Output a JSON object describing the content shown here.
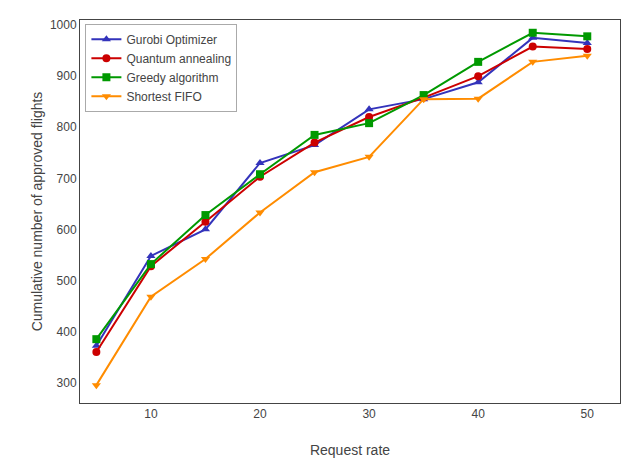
{
  "chart_data": {
    "type": "line",
    "x": [
      5,
      10,
      15,
      20,
      25,
      30,
      35,
      40,
      45,
      50
    ],
    "xlabel": "Request rate",
    "ylabel": "Cumulative number of approved flights",
    "xlim": [
      3.5,
      53
    ],
    "ylim": [
      260,
      1010
    ],
    "xticks": [
      10,
      20,
      30,
      40,
      50
    ],
    "yticks": [
      300,
      400,
      500,
      600,
      700,
      800,
      900,
      1000
    ],
    "grid": false,
    "legend": "upper left",
    "series": [
      {
        "name": "Gurobi Optimizer",
        "color": "#3333bb",
        "marker": "triangle-up",
        "values": [
          372,
          548,
          600,
          730,
          765,
          835,
          855,
          888,
          975,
          965
        ]
      },
      {
        "name": "Quantum annealing",
        "color": "#cc0000",
        "marker": "circle",
        "values": [
          360,
          528,
          615,
          703,
          770,
          820,
          858,
          900,
          958,
          953
        ]
      },
      {
        "name": "Greedy algorithm",
        "color": "#009900",
        "marker": "square",
        "values": [
          385,
          532,
          628,
          708,
          785,
          808,
          863,
          928,
          985,
          978
        ]
      },
      {
        "name": "Shortest FIFO",
        "color": "#ff8c00",
        "marker": "triangle-down",
        "values": [
          295,
          468,
          542,
          633,
          712,
          742,
          855,
          856,
          928,
          940
        ]
      }
    ]
  }
}
